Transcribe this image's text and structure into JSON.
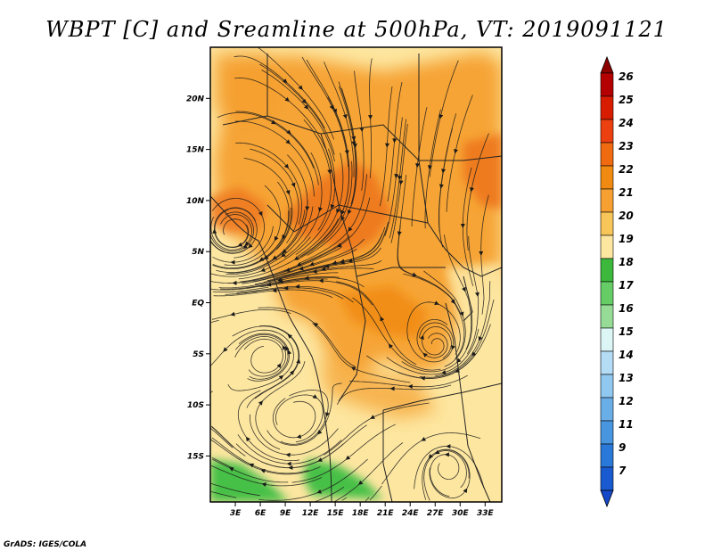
{
  "title": "WBPT [C] and Sreamline at 500hPa, VT: 2019091121",
  "footer": "GrADS: IGES/COLA",
  "map": {
    "lat_labels": [
      "20N",
      "15N",
      "10N",
      "5N",
      "EQ",
      "5S",
      "10S",
      "15S"
    ],
    "lat_values": [
      20,
      15,
      10,
      5,
      0,
      -5,
      -10,
      -15
    ],
    "lon_labels": [
      "3E",
      "6E",
      "9E",
      "12E",
      "15E",
      "18E",
      "21E",
      "24E",
      "27E",
      "30E",
      "33E"
    ],
    "lon_values": [
      3,
      6,
      9,
      12,
      15,
      18,
      21,
      24,
      27,
      30,
      33
    ],
    "lat_range": [
      -19.5,
      25
    ],
    "lon_range": [
      0,
      35
    ],
    "background_color": "#fde6a0",
    "regions": [
      {
        "name": "warm-core-north-central",
        "level": 21,
        "color": "#f5a030"
      },
      {
        "name": "hot-core-central",
        "level": 22,
        "color": "#ee7820"
      },
      {
        "name": "hot-core-east",
        "level": 22,
        "color": "#ee7820"
      },
      {
        "name": "equatorial-warm-band",
        "level": 21,
        "color": "#f5a030"
      },
      {
        "name": "cool-sw-green",
        "level": 17,
        "color": "#46c046"
      }
    ]
  },
  "chart_data": {
    "type": "heatmap",
    "variable": "WBPT [C]",
    "level": "500hPa",
    "valid_time": "2019091121",
    "colorbar": {
      "labels": [
        "26",
        "25",
        "24",
        "23",
        "22",
        "21",
        "20",
        "19",
        "18",
        "17",
        "16",
        "15",
        "14",
        "13",
        "12",
        "11",
        "9",
        "7"
      ],
      "colors": [
        "#b40000",
        "#d81c00",
        "#ec4010",
        "#f06a10",
        "#f08a10",
        "#f5a030",
        "#f8c658",
        "#fde6a0",
        "#3cb83c",
        "#66cc66",
        "#96dc96",
        "#dcf5f5",
        "#b4dcf5",
        "#90c8f0",
        "#6aaee8",
        "#4896e0",
        "#2a78d8",
        "#1a5ad0"
      ],
      "top_color": "#8c0000",
      "bottom_color": "#1448c8"
    }
  }
}
